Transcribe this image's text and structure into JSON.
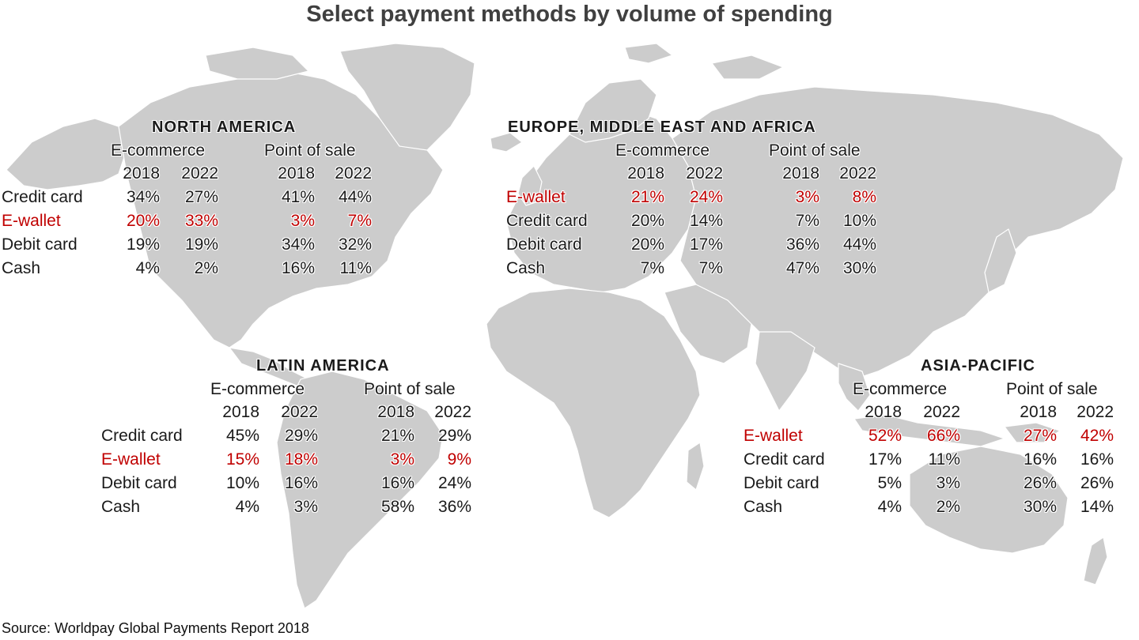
{
  "title": "Select payment methods by volume of spending",
  "source": "Source: Worldpay Global Payments Report 2018",
  "colors": {
    "land": "#cccccc",
    "border": "#ffffff",
    "highlight": "#c00000",
    "text": "#1a1a1a"
  },
  "groups": [
    "E-commerce",
    "Point of sale"
  ],
  "years": [
    "2018",
    "2022",
    "2018",
    "2022"
  ],
  "regions": [
    {
      "name": "NORTH AMERICA",
      "rows": [
        {
          "method": "Credit card",
          "values": [
            "34%",
            "27%",
            "41%",
            "44%"
          ],
          "highlight": false
        },
        {
          "method": "E-wallet",
          "values": [
            "20%",
            "33%",
            "3%",
            "7%"
          ],
          "highlight": true
        },
        {
          "method": "Debit card",
          "values": [
            "19%",
            "19%",
            "34%",
            "32%"
          ],
          "highlight": false
        },
        {
          "method": "Cash",
          "values": [
            "4%",
            "2%",
            "16%",
            "11%"
          ],
          "highlight": false
        }
      ]
    },
    {
      "name": "EUROPE, MIDDLE EAST AND AFRICA",
      "rows": [
        {
          "method": "E-wallet",
          "values": [
            "21%",
            "24%",
            "3%",
            "8%"
          ],
          "highlight": true
        },
        {
          "method": "Credit card",
          "values": [
            "20%",
            "14%",
            "7%",
            "10%"
          ],
          "highlight": false
        },
        {
          "method": "Debit card",
          "values": [
            "20%",
            "17%",
            "36%",
            "44%"
          ],
          "highlight": false
        },
        {
          "method": "Cash",
          "values": [
            "7%",
            "7%",
            "47%",
            "30%"
          ],
          "highlight": false
        }
      ]
    },
    {
      "name": "LATIN AMERICA",
      "rows": [
        {
          "method": "Credit card",
          "values": [
            "45%",
            "29%",
            "21%",
            "29%"
          ],
          "highlight": false
        },
        {
          "method": "E-wallet",
          "values": [
            "15%",
            "18%",
            "3%",
            "9%"
          ],
          "highlight": true
        },
        {
          "method": "Debit card",
          "values": [
            "10%",
            "16%",
            "16%",
            "24%"
          ],
          "highlight": false
        },
        {
          "method": "Cash",
          "values": [
            "4%",
            "3%",
            "58%",
            "36%"
          ],
          "highlight": false
        }
      ]
    },
    {
      "name": "ASIA-PACIFIC",
      "rows": [
        {
          "method": "E-wallet",
          "values": [
            "52%",
            "66%",
            "27%",
            "42%"
          ],
          "highlight": true
        },
        {
          "method": "Credit card",
          "values": [
            "17%",
            "11%",
            "16%",
            "16%"
          ],
          "highlight": false
        },
        {
          "method": "Debit card",
          "values": [
            "5%",
            "3%",
            "26%",
            "26%"
          ],
          "highlight": false
        },
        {
          "method": "Cash",
          "values": [
            "4%",
            "2%",
            "30%",
            "14%"
          ],
          "highlight": false
        }
      ]
    }
  ]
}
